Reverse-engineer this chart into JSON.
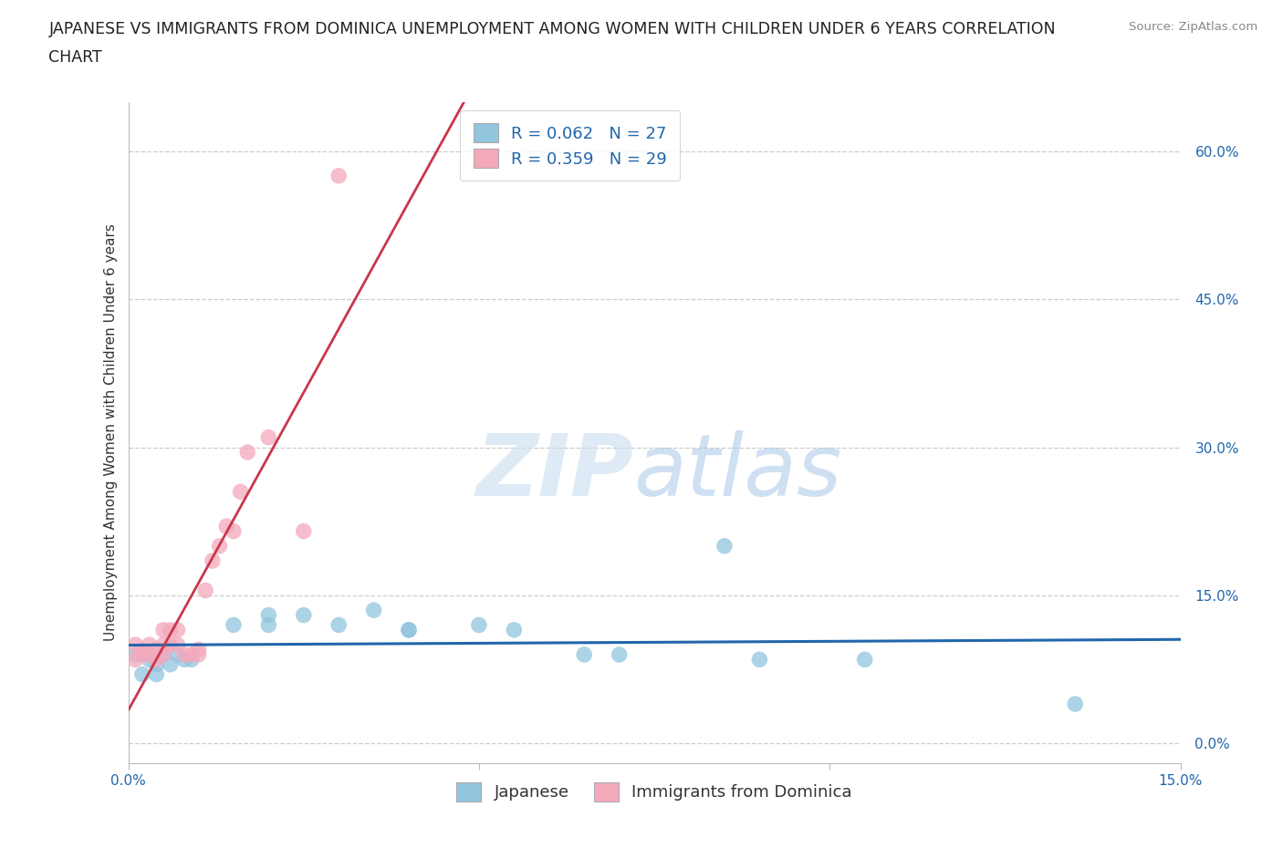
{
  "title_line1": "JAPANESE VS IMMIGRANTS FROM DOMINICA UNEMPLOYMENT AMONG WOMEN WITH CHILDREN UNDER 6 YEARS CORRELATION",
  "title_line2": "CHART",
  "source": "Source: ZipAtlas.com",
  "ylabel": "Unemployment Among Women with Children Under 6 years",
  "legend_label_blue": "Japanese",
  "legend_label_pink": "Immigrants from Dominica",
  "R_blue": "0.062",
  "N_blue": "27",
  "R_pink": "0.359",
  "N_pink": "29",
  "color_blue": "#92c5de",
  "color_pink": "#f4a9bb",
  "color_blue_line": "#2166ac",
  "color_pink_line": "#c9374a",
  "color_text_blue": "#2166ac",
  "xlim": [
    0.0,
    0.15
  ],
  "ylim": [
    -0.02,
    0.65
  ],
  "yticks": [
    0.0,
    0.15,
    0.3,
    0.45,
    0.6
  ],
  "ytick_labels": [
    "0.0%",
    "15.0%",
    "30.0%",
    "45.0%",
    "60.0%"
  ],
  "xticks": [
    0.0,
    0.05,
    0.1,
    0.15
  ],
  "xtick_labels": [
    "0.0%",
    "",
    "",
    "15.0%"
  ],
  "background_color": "#ffffff",
  "grid_color": "#cccccc",
  "title_fontsize": 12.5,
  "axis_label_fontsize": 11,
  "tick_fontsize": 11,
  "legend_fontsize": 13,
  "japanese_x": [
    0.001,
    0.002,
    0.003,
    0.003,
    0.004,
    0.004,
    0.005,
    0.006,
    0.007,
    0.008,
    0.009,
    0.015,
    0.02,
    0.02,
    0.025,
    0.03,
    0.035,
    0.04,
    0.04,
    0.05,
    0.055,
    0.065,
    0.07,
    0.085,
    0.09,
    0.105,
    0.135
  ],
  "japanese_y": [
    0.09,
    0.07,
    0.085,
    0.09,
    0.07,
    0.08,
    0.09,
    0.08,
    0.09,
    0.085,
    0.085,
    0.12,
    0.13,
    0.12,
    0.13,
    0.12,
    0.135,
    0.115,
    0.115,
    0.12,
    0.115,
    0.09,
    0.09,
    0.2,
    0.085,
    0.085,
    0.04
  ],
  "dominica_x": [
    0.001,
    0.001,
    0.002,
    0.002,
    0.003,
    0.003,
    0.004,
    0.004,
    0.005,
    0.005,
    0.005,
    0.006,
    0.006,
    0.007,
    0.007,
    0.008,
    0.009,
    0.01,
    0.01,
    0.011,
    0.012,
    0.013,
    0.014,
    0.015,
    0.016,
    0.017,
    0.02,
    0.025,
    0.03
  ],
  "dominica_y": [
    0.1,
    0.085,
    0.095,
    0.09,
    0.1,
    0.09,
    0.095,
    0.085,
    0.115,
    0.1,
    0.09,
    0.1,
    0.115,
    0.115,
    0.1,
    0.09,
    0.09,
    0.09,
    0.095,
    0.155,
    0.185,
    0.2,
    0.22,
    0.215,
    0.255,
    0.295,
    0.31,
    0.215,
    0.575
  ]
}
